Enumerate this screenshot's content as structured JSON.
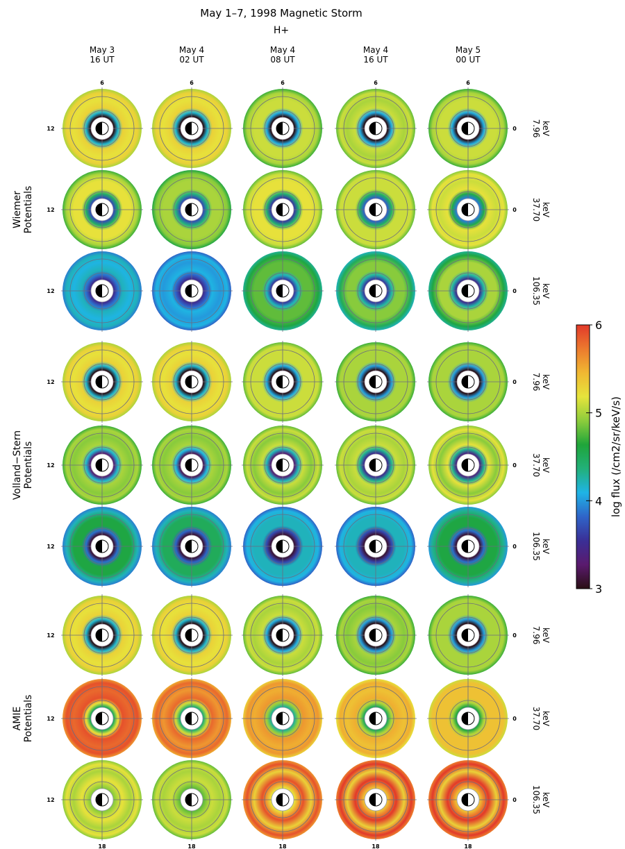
{
  "chart_data": {
    "type": "heatmap",
    "title": "May 1–7, 1998 Magnetic Storm",
    "subtitle": "H+",
    "columns": [
      {
        "line1": "May 3",
        "line2": "16 UT"
      },
      {
        "line1": "May 4",
        "line2": "02 UT"
      },
      {
        "line1": "May 4",
        "line2": "08 UT"
      },
      {
        "line1": "May 4",
        "line2": "16 UT"
      },
      {
        "line1": "May 5",
        "line2": "00 UT"
      }
    ],
    "groups": [
      {
        "line1": "Wiemer",
        "line2": "Potentials"
      },
      {
        "line1": "Volland−Stern",
        "line2": "Potentials"
      },
      {
        "line1": "AMIE",
        "line2": "Potentials"
      }
    ],
    "energies": [
      {
        "value": "7.96",
        "unit": "keV"
      },
      {
        "value": "37.70",
        "unit": "keV"
      },
      {
        "value": "106.35",
        "unit": "keV"
      }
    ],
    "mlt_labels": {
      "top": "6",
      "left": "12",
      "right": "0",
      "bottom": "18"
    },
    "colorbar": {
      "label": "log flux (/cm2/sr/keV/s)",
      "min": 3,
      "max": 6,
      "ticks": [
        "3",
        "4",
        "5",
        "6"
      ],
      "colors": [
        "#2a0f14",
        "#5a1a6e",
        "#3a2f96",
        "#2f64c8",
        "#1fb4e6",
        "#22b07a",
        "#1fa53a",
        "#8ccc3c",
        "#e6e43c",
        "#f0b832",
        "#ec7a2e",
        "#e2392a"
      ]
    },
    "panel_levels": [
      [
        [
          5.3,
          3.0,
          5.2
        ],
        [
          5.3,
          3.0,
          5.2
        ],
        [
          5.0,
          3.0,
          5.1
        ],
        [
          5.1,
          3.0,
          5.0
        ],
        [
          5.0,
          3.0,
          5.1
        ]
      ],
      [
        [
          5.0,
          3.7,
          5.2
        ],
        [
          4.9,
          3.7,
          5.0
        ],
        [
          5.1,
          3.6,
          5.2
        ],
        [
          5.1,
          3.8,
          5.1
        ],
        [
          5.2,
          3.9,
          5.1
        ]
      ],
      [
        [
          4.2,
          3.5,
          4.1
        ],
        [
          4.1,
          3.5,
          4.0
        ],
        [
          4.6,
          3.6,
          4.8
        ],
        [
          4.5,
          3.6,
          4.9
        ],
        [
          4.6,
          3.5,
          5.0
        ]
      ],
      [
        [
          5.3,
          3.0,
          5.2
        ],
        [
          5.3,
          3.0,
          5.2
        ],
        [
          5.1,
          3.0,
          5.1
        ],
        [
          5.0,
          3.0,
          5.0
        ],
        [
          5.0,
          3.0,
          5.0
        ]
      ],
      [
        [
          5.0,
          3.3,
          4.9
        ],
        [
          5.0,
          3.2,
          4.9
        ],
        [
          5.1,
          3.3,
          4.9
        ],
        [
          5.1,
          3.5,
          5.0
        ],
        [
          5.2,
          3.4,
          4.9
        ]
      ],
      [
        [
          4.2,
          3.1,
          4.6
        ],
        [
          4.2,
          3.1,
          4.5
        ],
        [
          4.1,
          3.1,
          4.2
        ],
        [
          4.1,
          3.1,
          4.2
        ],
        [
          4.3,
          3.1,
          4.6
        ]
      ],
      [
        [
          5.3,
          3.0,
          5.2
        ],
        [
          5.3,
          3.0,
          5.2
        ],
        [
          5.1,
          3.0,
          5.0
        ],
        [
          5.0,
          3.0,
          4.9
        ],
        [
          5.0,
          3.0,
          5.0
        ]
      ],
      [
        [
          5.9,
          4.5,
          5.8
        ],
        [
          5.8,
          4.4,
          5.6
        ],
        [
          5.6,
          4.3,
          5.5
        ],
        [
          5.5,
          4.5,
          5.4
        ],
        [
          5.4,
          4.6,
          5.4
        ]
      ],
      [
        [
          5.2,
          4.9,
          5.0
        ],
        [
          5.1,
          4.8,
          5.0
        ],
        [
          5.9,
          5.2,
          5.3
        ],
        [
          6.0,
          5.4,
          5.3
        ],
        [
          6.0,
          5.4,
          5.3
        ]
      ]
    ]
  }
}
